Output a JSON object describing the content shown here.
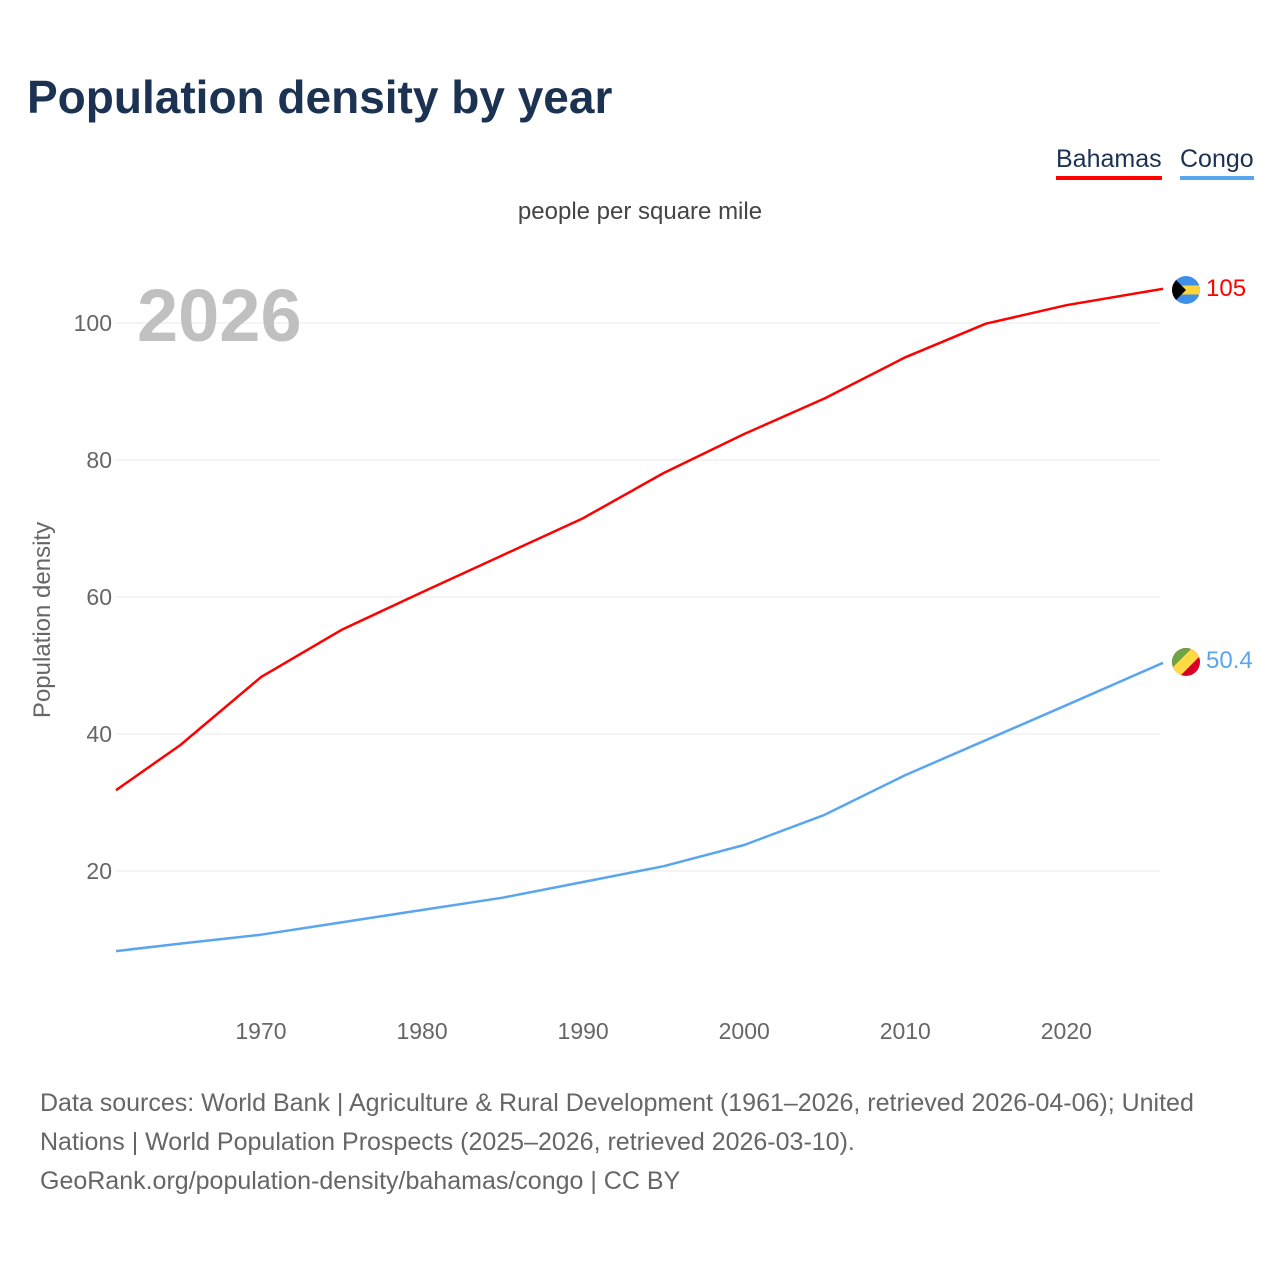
{
  "title": "Population density by year",
  "subtitle": "people per square mile",
  "year_label": "2026",
  "legend": {
    "bahamas": "Bahamas",
    "congo": "Congo"
  },
  "end_labels": {
    "bahamas": "105",
    "congo": "50.4"
  },
  "footer": {
    "line1": "Data sources: World Bank | Agriculture & Rural Development (1961–2026, retrieved 2026-04-06); United Nations | World Population Prospects (2025–2026, retrieved 2026-03-10).",
    "line2": "GeoRank.org/population-density/bahamas/congo | CC BY"
  },
  "chart_data": {
    "type": "line",
    "title": "Population density by year",
    "ylabel": "Population density",
    "xlabel": "",
    "xlim": [
      1961,
      2026
    ],
    "ylim": [
      0,
      110
    ],
    "xticks": [
      1970,
      1980,
      1990,
      2000,
      2010,
      2020
    ],
    "yticks": [
      20,
      40,
      60,
      80,
      100
    ],
    "grid": true,
    "legend_position": "top-right",
    "x": [
      1961,
      1965,
      1970,
      1975,
      1980,
      1985,
      1990,
      1995,
      2000,
      2005,
      2010,
      2015,
      2020,
      2026
    ],
    "series": [
      {
        "name": "Bahamas",
        "color": "#ff0000",
        "values": [
          31.8,
          38.4,
          48.3,
          55.2,
          60.7,
          66.1,
          71.5,
          78.1,
          83.8,
          89.0,
          95.0,
          99.9,
          102.6,
          105
        ]
      },
      {
        "name": "Congo",
        "color": "#5aa5ef",
        "values": [
          8.3,
          9.4,
          10.7,
          12.5,
          14.3,
          16.1,
          18.4,
          20.7,
          23.8,
          28.2,
          34.0,
          39.1,
          44.2,
          50.4
        ]
      }
    ]
  }
}
